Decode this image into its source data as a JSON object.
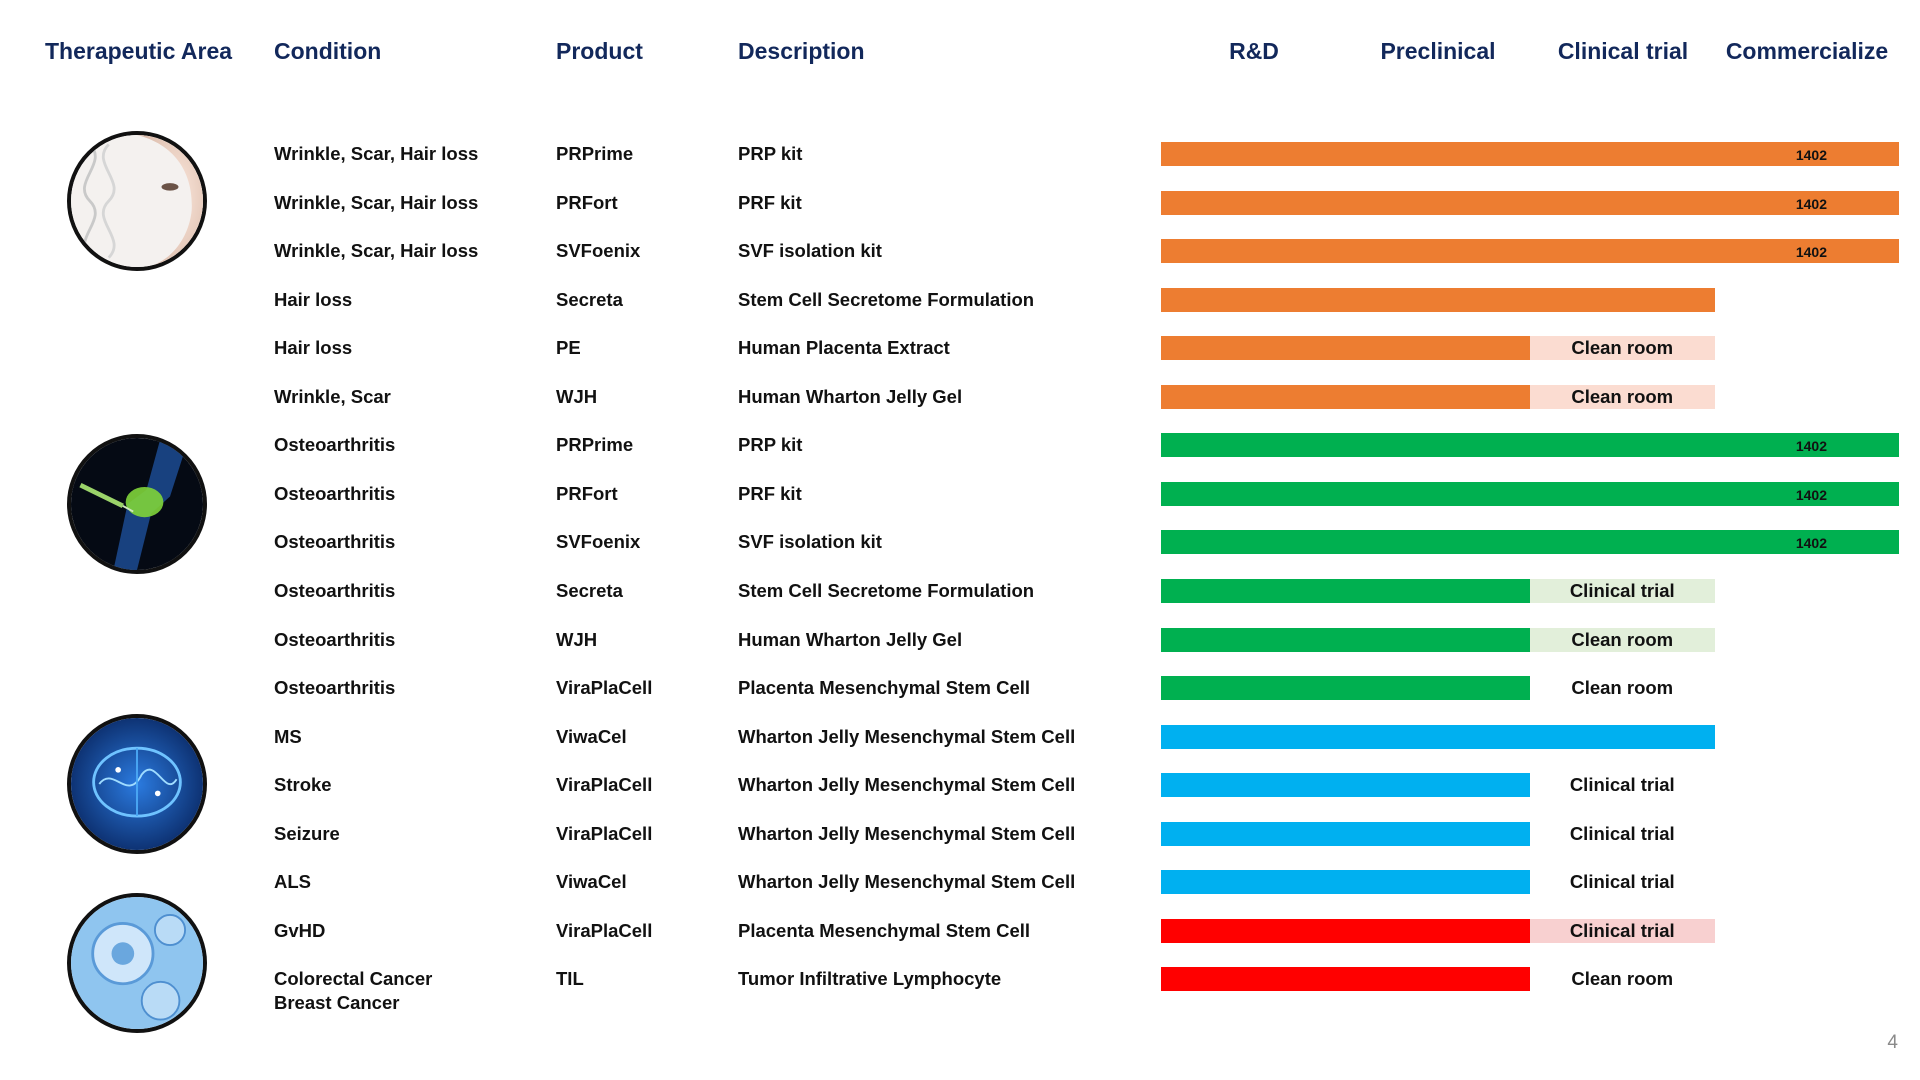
{
  "headers": {
    "therapeutic_area": "Therapeutic Area",
    "condition": "Condition",
    "product": "Product",
    "description": "Description",
    "stages": [
      "R&D",
      "Preclinical",
      "Clinical trial",
      "Commercialize"
    ]
  },
  "areas": [
    {
      "icon": "face-dna-icon",
      "border_color": "#ed7d31"
    },
    {
      "icon": "knee-joint-icon",
      "border_color": "#00b050"
    },
    {
      "icon": "brain-icon",
      "border_color": "#1f5fb0"
    },
    {
      "icon": "cells-icon",
      "border_color": "#e8171c"
    }
  ],
  "colors": {
    "orange": "#ed7d31",
    "orange_light": "#fbdcd1",
    "green": "#00b050",
    "green_light": "#e2efda",
    "blue": "#00b0f0",
    "red": "#ff0000",
    "red_light": "#f8d0d0"
  },
  "rows": [
    {
      "condition": "Wrinkle, Scar, Hair loss",
      "product": "PRPrime",
      "description": "PRP kit",
      "stage": "Commercialize",
      "color": "orange",
      "bar_label": "1402",
      "status_label": "",
      "status_bg": ""
    },
    {
      "condition": "Wrinkle, Scar, Hair loss",
      "product": "PRFort",
      "description": "PRF kit",
      "stage": "Commercialize",
      "color": "orange",
      "bar_label": "1402",
      "status_label": "",
      "status_bg": ""
    },
    {
      "condition": "Wrinkle, Scar, Hair loss",
      "product": "SVFoenix",
      "description": "SVF isolation kit",
      "stage": "Commercialize",
      "color": "orange",
      "bar_label": "1402",
      "status_label": "",
      "status_bg": ""
    },
    {
      "condition": "Hair loss",
      "product": "Secreta",
      "description": "Stem Cell Secretome Formulation",
      "stage": "Clinical trial",
      "color": "orange",
      "bar_label": "",
      "status_label": "",
      "status_bg": ""
    },
    {
      "condition": "Hair loss",
      "product": "PE",
      "description": "Human Placenta Extract",
      "stage": "Preclinical",
      "color": "orange",
      "bar_label": "",
      "status_label": "Clean room",
      "status_bg": "orange_light"
    },
    {
      "condition": "Wrinkle, Scar",
      "product": "WJH",
      "description": "Human Wharton Jelly Gel",
      "stage": "Preclinical",
      "color": "orange",
      "bar_label": "",
      "status_label": "Clean room",
      "status_bg": "orange_light"
    },
    {
      "condition": "Osteoarthritis",
      "product": "PRPrime",
      "description": "PRP kit",
      "stage": "Commercialize",
      "color": "green",
      "bar_label": "1402",
      "status_label": "",
      "status_bg": ""
    },
    {
      "condition": "Osteoarthritis",
      "product": "PRFort",
      "description": "PRF kit",
      "stage": "Commercialize",
      "color": "green",
      "bar_label": "1402",
      "status_label": "",
      "status_bg": ""
    },
    {
      "condition": "Osteoarthritis",
      "product": "SVFoenix",
      "description": "SVF isolation kit",
      "stage": "Commercialize",
      "color": "green",
      "bar_label": "1402",
      "status_label": "",
      "status_bg": ""
    },
    {
      "condition": "Osteoarthritis",
      "product": "Secreta",
      "description": "Stem Cell Secretome Formulation",
      "stage": "Preclinical",
      "color": "green",
      "bar_label": "",
      "status_label": "Clinical trial",
      "status_bg": "green_light"
    },
    {
      "condition": "Osteoarthritis",
      "product": "WJH",
      "description": "Human Wharton Jelly Gel",
      "stage": "Preclinical",
      "color": "green",
      "bar_label": "",
      "status_label": "Clean room",
      "status_bg": "green_light"
    },
    {
      "condition": "Osteoarthritis",
      "product": "ViraPlaCell",
      "description": "Placenta Mesenchymal Stem Cell",
      "stage": "Preclinical",
      "color": "green",
      "bar_label": "",
      "status_label": "Clean room",
      "status_bg": ""
    },
    {
      "condition": "MS",
      "product": "ViwaCel",
      "description": "Wharton Jelly Mesenchymal Stem Cell",
      "stage": "Clinical trial",
      "color": "blue",
      "bar_label": "",
      "status_label": "",
      "status_bg": ""
    },
    {
      "condition": "Stroke",
      "product": "ViraPlaCell",
      "description": "Wharton Jelly Mesenchymal Stem Cell",
      "stage": "Preclinical",
      "color": "blue",
      "bar_label": "",
      "status_label": "Clinical trial",
      "status_bg": ""
    },
    {
      "condition": "Seizure",
      "product": "ViraPlaCell",
      "description": "Wharton Jelly Mesenchymal Stem Cell",
      "stage": "Preclinical",
      "color": "blue",
      "bar_label": "",
      "status_label": "Clinical trial",
      "status_bg": ""
    },
    {
      "condition": "ALS",
      "product": "ViwaCel",
      "description": "Wharton Jelly Mesenchymal Stem Cell",
      "stage": "Preclinical",
      "color": "blue",
      "bar_label": "",
      "status_label": "Clinical trial",
      "status_bg": ""
    },
    {
      "condition": "GvHD",
      "product": "ViraPlaCell",
      "description": "Placenta Mesenchymal Stem Cell",
      "stage": "Preclinical",
      "color": "red",
      "bar_label": "",
      "status_label": "Clinical trial",
      "status_bg": "red_light"
    },
    {
      "condition": "Colorectal Cancer",
      "condition_line2": "Breast Cancer",
      "product": "TIL",
      "description": "Tumor Infiltrative Lymphocyte",
      "stage": "Preclinical",
      "color": "red",
      "bar_label": "",
      "status_label": "Clean room",
      "status_bg": ""
    }
  ],
  "page_number": "4"
}
